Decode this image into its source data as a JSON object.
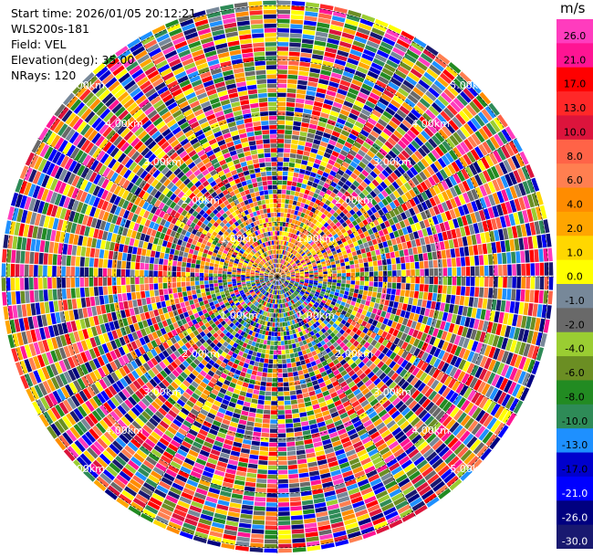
{
  "info": {
    "start_time": "Start time: 2026/01/05 20:12:21",
    "instrument": "WLS200s-181",
    "field": "Field: VEL",
    "elevation": "Elevation(deg): 35.00",
    "nrays": "NRays: 120"
  },
  "colorbar": {
    "unit": "m/s",
    "ticks": [
      "26.0",
      "21.0",
      "17.0",
      "13.0",
      "10.0",
      "8.0",
      "6.0",
      "4.0",
      "2.0",
      "1.0",
      "0.0",
      "-1.0",
      "-2.0",
      "-4.0",
      "-6.0",
      "-8.0",
      "-10.0",
      "-13.0",
      "-17.0",
      "-21.0",
      "-26.0",
      "-30.0"
    ],
    "colors": [
      "#ff3cbe",
      "#ff1493",
      "#ff0000",
      "#ff2828",
      "#dc143c",
      "#ff6347",
      "#ff7f50",
      "#ff8c00",
      "#ffa500",
      "#ffd700",
      "#ffff00",
      "#778899",
      "#696969",
      "#9acd32",
      "#6b8e23",
      "#228b22",
      "#2e8b57",
      "#1e90ff",
      "#0000cd",
      "#0000ff",
      "#000080",
      "#191970"
    ]
  },
  "chart_data": {
    "type": "heatmap",
    "projection": "polar-ppi",
    "nrays": 120,
    "range_ring_labels": [
      "1.00km",
      "2.00km",
      "3.00km",
      "4.00km",
      "5.00km"
    ],
    "range_max_km": 5.0,
    "value_range": [
      -30.0,
      30.0
    ]
  }
}
